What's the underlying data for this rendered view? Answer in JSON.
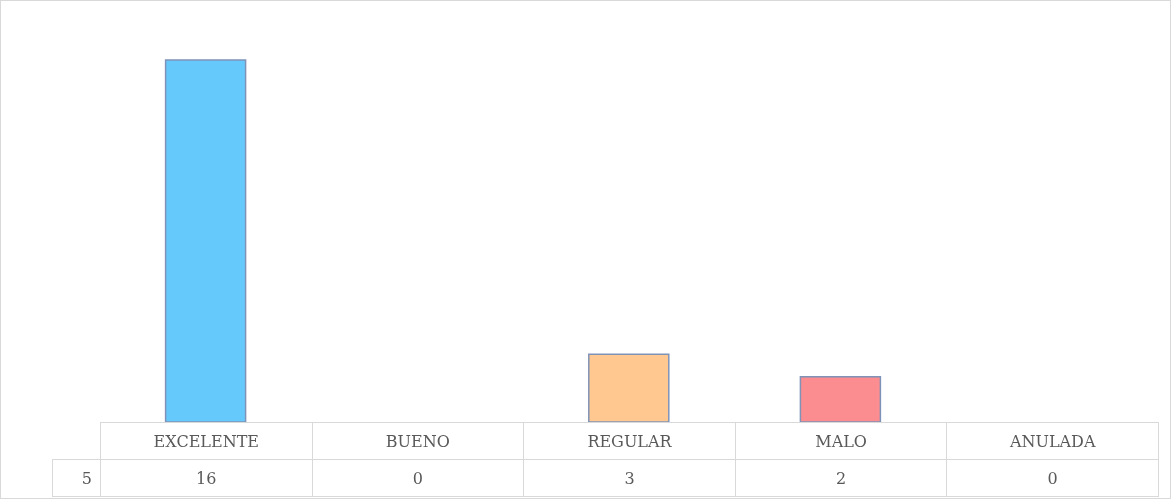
{
  "chart_data": {
    "type": "bar",
    "categories": [
      "EXCELENTE",
      "BUENO",
      "REGULAR",
      "MALO",
      "ANULADA"
    ],
    "series": [
      {
        "name": "5",
        "colors": [
          "#66c9fc",
          null,
          "#fec890",
          "#fb8c8f",
          null
        ],
        "values": [
          16,
          0,
          3,
          2,
          0
        ]
      }
    ],
    "data_labels": true
  }
}
